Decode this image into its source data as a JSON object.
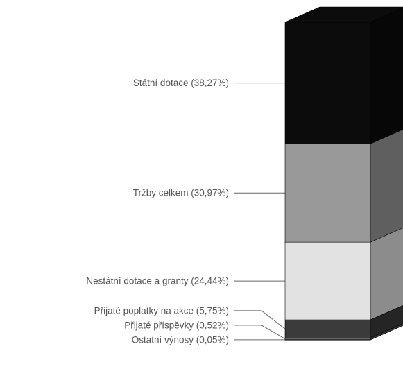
{
  "chart_data": {
    "type": "bar",
    "subtype": "stacked-3d-column",
    "title": "",
    "xlabel": "",
    "ylabel": "",
    "ylim": [
      0,
      100
    ],
    "segments_bottom_to_top": [
      {
        "label": "Ostatní výnosy (0,05%)",
        "value": 0.05,
        "color": "#888888"
      },
      {
        "label": "Přijaté příspěvky  (0,52%)",
        "value": 0.52,
        "color": "#666666"
      },
      {
        "label": "Přijaté poplatky na akce  (5,75%)",
        "value": 5.75,
        "color": "#3b3b3b"
      },
      {
        "label": "Nestátní dotace a granty (24,44%)",
        "value": 24.44,
        "color": "#e2e2e2"
      },
      {
        "label": "Tržby celkem (30,97%)",
        "value": 30.97,
        "color": "#999999"
      },
      {
        "label": "Státní dotace (38,27%)",
        "value": 38.27,
        "color": "#0c0c0c"
      }
    ]
  }
}
